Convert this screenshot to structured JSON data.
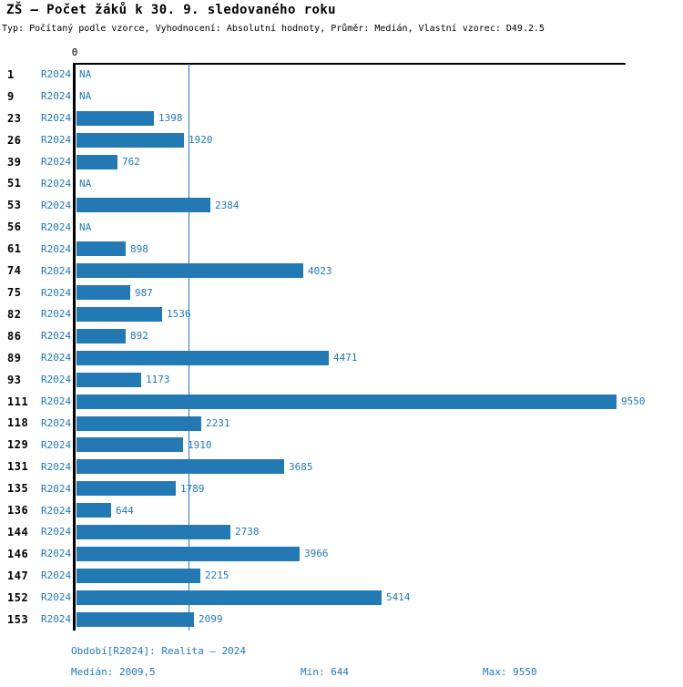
{
  "header": {
    "title": "ZŠ – Počet žáků k 30. 9. sledovaného roku",
    "subtitle": "Typ: Počítaný podle vzorce, Vyhodnocení: Absolutní hodnoty, Průměr: Medián, Vlastní vzorec: D49.2.5"
  },
  "chart_data": {
    "type": "bar",
    "orientation": "horizontal",
    "title": "ZŠ – Počet žáků k 30. 9. sledovaného roku",
    "axis_zero_label": "0",
    "period_label": "R2024",
    "na_label": "NA",
    "xlim": [
      0,
      9550
    ],
    "grid": false,
    "accent_color": "#2379b4",
    "axis_color": "#000000",
    "median_value": 2009.5,
    "min_value": 644,
    "max_value": 9550,
    "categories": [
      "1",
      "9",
      "23",
      "26",
      "39",
      "51",
      "53",
      "56",
      "61",
      "74",
      "75",
      "82",
      "86",
      "89",
      "93",
      "111",
      "118",
      "129",
      "131",
      "135",
      "136",
      "144",
      "146",
      "147",
      "152",
      "153"
    ],
    "values": [
      null,
      null,
      1398,
      1920,
      762,
      null,
      2384,
      null,
      898,
      4023,
      987,
      1536,
      892,
      4471,
      1173,
      9550,
      2231,
      1910,
      3685,
      1789,
      644,
      2738,
      3966,
      2215,
      5414,
      2099
    ]
  },
  "footer": {
    "period": "Období[R2024]: Realita – 2024",
    "median": "Medián: 2009,5",
    "min": "Min: 644",
    "max": "Max: 9550"
  }
}
